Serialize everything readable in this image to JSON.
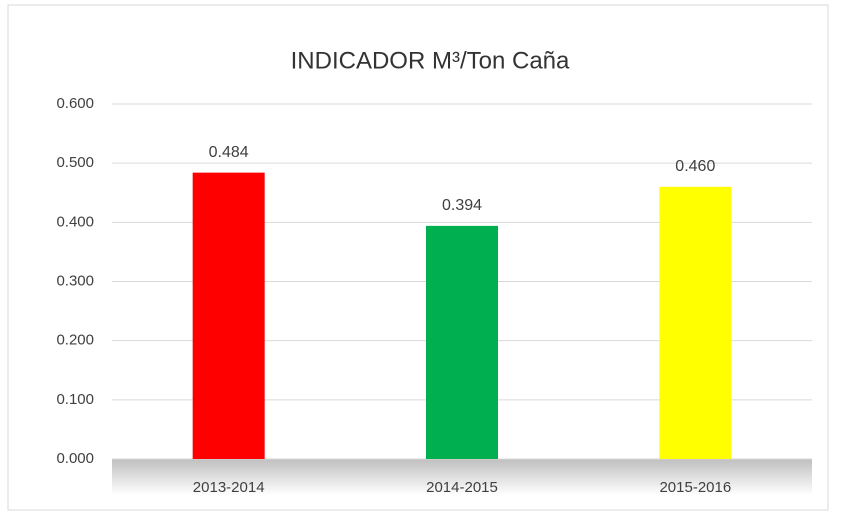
{
  "chart_data": {
    "type": "bar",
    "title": "INDICADOR M³/Ton Caña",
    "categories": [
      "2013-2014",
      "2014-2015",
      "2015-2016"
    ],
    "values": [
      0.484,
      0.394,
      0.46
    ],
    "value_labels": [
      "0.484",
      "0.394",
      "0.460"
    ],
    "colors": [
      "#ff0000",
      "#00b050",
      "#ffff00"
    ],
    "ylim": [
      0,
      0.6
    ],
    "yticks": [
      {
        "value": 0,
        "label": "0.000"
      },
      {
        "value": 0.1,
        "label": "0.100"
      },
      {
        "value": 0.2,
        "label": "0.200"
      },
      {
        "value": 0.3,
        "label": "0.300"
      },
      {
        "value": 0.4,
        "label": "0.400"
      },
      {
        "value": 0.5,
        "label": "0.500"
      },
      {
        "value": 0.6,
        "label": "0.600"
      }
    ],
    "grid": true
  }
}
